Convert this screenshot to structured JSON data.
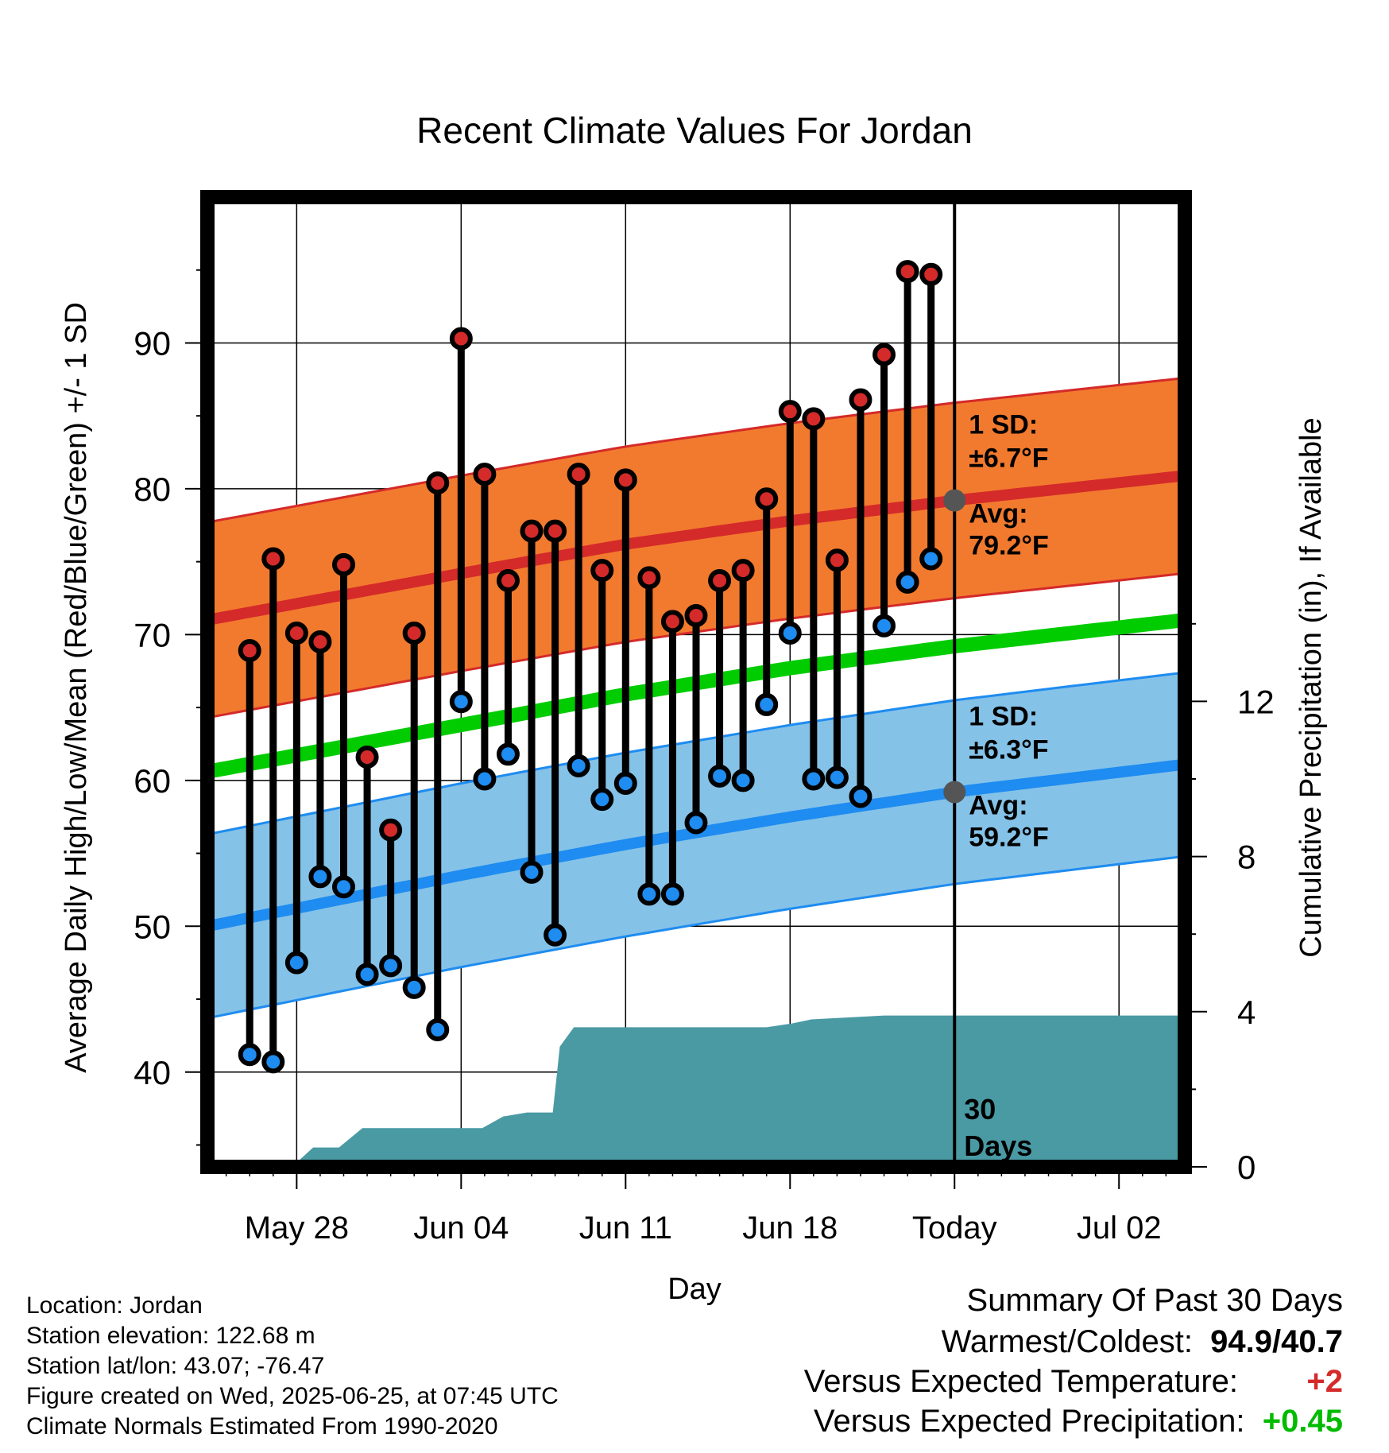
{
  "chart_data": {
    "type": "line",
    "title": "Recent Climate Values For Jordan",
    "xlabel": "Day",
    "ylabel": "Average Daily High/Low/Mean (Red/Blue/Green) +/- 1 SD",
    "y2label": "Cumulative Precipitation (in), If Available",
    "ylim": [
      33.5,
      100
    ],
    "y2lim": [
      0,
      25
    ],
    "x_range_days": [
      -31.8,
      9.8
    ],
    "yticks": [
      40,
      50,
      60,
      70,
      80,
      90
    ],
    "y2ticks": [
      0,
      4,
      8,
      12
    ],
    "xticks": [
      {
        "day": -28,
        "label": "May 28"
      },
      {
        "day": -21,
        "label": "Jun 04"
      },
      {
        "day": -14,
        "label": "Jun 11"
      },
      {
        "day": -7,
        "label": "Jun 18"
      },
      {
        "day": 0,
        "label": "Today"
      },
      {
        "day": 7,
        "label": "Jul 02"
      }
    ],
    "grid": true,
    "daily": {
      "day": [
        -30,
        -29,
        -28,
        -27,
        -26,
        -25,
        -24,
        -23,
        -22,
        -21,
        -20,
        -19,
        -18,
        -17,
        -16,
        -15,
        -14,
        -13,
        -12,
        -11,
        -10,
        -9,
        -8,
        -7,
        -6,
        -5,
        -4,
        -3,
        -2,
        -1
      ],
      "high": [
        68.9,
        75.2,
        70.1,
        69.5,
        74.8,
        61.6,
        56.6,
        70.1,
        80.4,
        90.3,
        81.0,
        73.7,
        77.1,
        77.1,
        81.0,
        74.4,
        80.6,
        73.9,
        70.9,
        71.3,
        73.7,
        74.4,
        79.3,
        85.3,
        84.8,
        75.1,
        86.1,
        89.2,
        94.9,
        94.7
      ],
      "low": [
        41.2,
        40.7,
        47.5,
        53.4,
        52.7,
        46.7,
        47.3,
        45.8,
        42.9,
        65.4,
        60.1,
        61.8,
        53.7,
        49.4,
        61.0,
        58.7,
        59.8,
        52.2,
        52.2,
        57.1,
        60.3,
        60.0,
        65.2,
        70.1,
        60.1,
        60.2,
        58.9,
        70.6,
        73.6,
        75.2
      ]
    },
    "normals": {
      "day": [
        -31.8,
        -21,
        -14,
        -7,
        0,
        9.8
      ],
      "avg_high": [
        71.0,
        74.2,
        76.2,
        77.8,
        79.2,
        80.9
      ],
      "avg_low": [
        50.0,
        53.5,
        55.6,
        57.5,
        59.2,
        61.1
      ],
      "avg_mean": [
        60.6,
        63.8,
        65.9,
        67.7,
        69.2,
        71.0
      ],
      "high_sd": 6.7,
      "low_sd": 6.3
    },
    "precip_cumulative": {
      "day": [
        -31.8,
        -28.2,
        -27.3,
        -26.2,
        -25.2,
        -24.9,
        -21.0,
        -20.1,
        -19.2,
        -18.2,
        -17.1,
        -16.8,
        -16.2,
        -15.0,
        -10.0,
        -8.0,
        -6.9,
        -6.1,
        -3.0,
        0.0,
        9.8
      ],
      "value": [
        0,
        0,
        0.5,
        0.5,
        1.0,
        1.0,
        1.0,
        1.0,
        1.3,
        1.4,
        1.4,
        3.1,
        3.6,
        3.6,
        3.6,
        3.6,
        3.7,
        3.8,
        3.9,
        3.9,
        3.9
      ]
    }
  },
  "labels": {
    "high_sd_label": "1 SD:",
    "high_sd_value": "±6.7°F",
    "high_avg_label": "Avg:",
    "high_avg_value": "79.2°F",
    "low_sd_label": "1 SD:",
    "low_sd_value": "±6.3°F",
    "low_avg_label": "Avg:",
    "low_avg_value": "59.2°F",
    "period_number": "30",
    "period_unit": "Days"
  },
  "info": {
    "location": "Location: Jordan",
    "elevation": "Station elevation: 122.68 m",
    "latlon": "Station lat/lon: 43.07; -76.47",
    "created": "Figure created on Wed, 2025-06-25, at 07:45 UTC",
    "normals": "Climate Normals Estimated From 1990-2020"
  },
  "summary": {
    "title": "Summary Of Past 30 Days",
    "warmest_coldest_label": "Warmest/Coldest:",
    "warmest_coldest_value": "94.9/40.7",
    "temp_label": "Versus Expected Temperature:",
    "temp_value": "+2",
    "precip_label": "Versus Expected Precipitation:",
    "precip_value": "+0.45"
  },
  "colors": {
    "high_band": "#f27a2e",
    "high_line": "#d42a2a",
    "low_band": "#85c2e8",
    "low_line": "#1e8cf0",
    "mean_line": "#00cc00",
    "precip": "#4a9aa4",
    "high_dot": "#d42a2a",
    "low_dot": "#1e8cf0",
    "marker": "#555555",
    "label_gray": "#555555",
    "temp_value": "#d42a2a",
    "precip_value": "#00bb00"
  }
}
